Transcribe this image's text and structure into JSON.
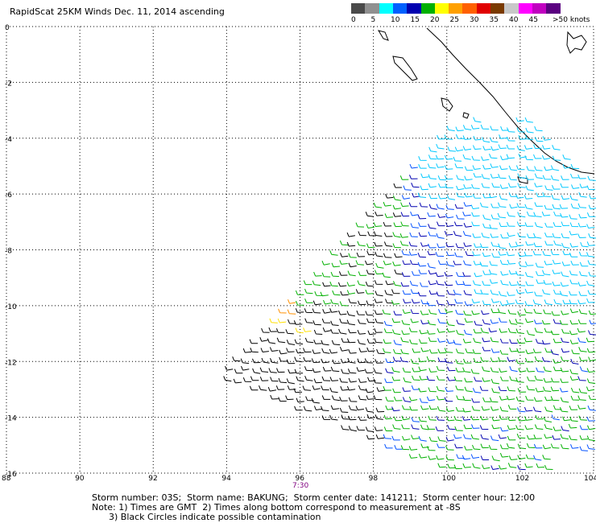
{
  "title": "RapidScat 25KM Winds Dec. 11, 2014 ascending",
  "scale": {
    "colors": [
      "#4a4a4a",
      "#909090",
      "#00ffff",
      "#0060ff",
      "#0000b0",
      "#00b000",
      "#ffff00",
      "#ffa000",
      "#ff6000",
      "#e00000",
      "#7a3a00",
      "#c8c8c8",
      "#ff00ff",
      "#c000c0",
      "#5a0080"
    ],
    "labels": [
      "0",
      "5",
      "10",
      "15",
      "20",
      "25",
      "30",
      "35",
      "40",
      "45",
      ">50 knots"
    ]
  },
  "axes": {
    "x_ticks": [
      "88",
      "90",
      "92",
      "94",
      "96",
      "98",
      "100",
      "102",
      "104"
    ],
    "y_ticks": [
      "0",
      "-2",
      "-4",
      "-6",
      "-8",
      "-10",
      "-12",
      "-14",
      "-16"
    ],
    "grid": true
  },
  "time_label": "7:30",
  "footer": {
    "line1": "Storm number: 03S;  Storm name: BAKUNG;  Storm center date: 141211;  Storm center hour: 12:00",
    "line2": "Note: 1) Times are GMT  2) Times along bottom correspond to measurement at -8S",
    "line3": "      3) Black Circles indicate possible contamination"
  },
  "wind_colors": {
    "cyan": "#00c8ff",
    "blue": "#0050ff",
    "dark_blue": "#0000b0",
    "green": "#00b000",
    "yellow": "#ffe000",
    "orange": "#ff9000",
    "red": "#e00000",
    "black": "#000000"
  }
}
